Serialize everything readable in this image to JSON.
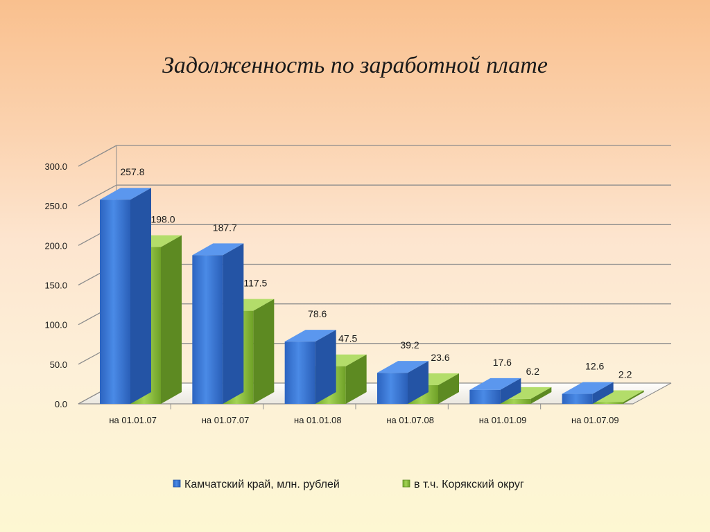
{
  "title": "Задолженность по заработной плате",
  "chart_data": {
    "type": "bar",
    "title": "Задолженность по заработной плате",
    "categories": [
      "на 01.01.07",
      "на 01.07.07",
      "на 01.01.08",
      "на 01.07.08",
      "на 01.01.09",
      "на 01.07.09"
    ],
    "series": [
      {
        "name": "Камчатский край, млн. рублей",
        "values": [
          257.8,
          187.7,
          78.6,
          39.2,
          17.6,
          12.6
        ],
        "labels": [
          "257.8",
          "187.7",
          "78.6",
          "39.2",
          "17.6",
          "12.6"
        ],
        "color": "#3a7bd5"
      },
      {
        "name": "в т.ч. Корякский округ",
        "values": [
          198.0,
          117.5,
          47.5,
          23.6,
          6.2,
          2.2
        ],
        "labels": [
          "198.0",
          "117.5",
          "47.5",
          "23.6",
          "6.2",
          "2.2"
        ],
        "color": "#8dc63f"
      }
    ],
    "yticks": [
      "0.0",
      "50.0",
      "100.0",
      "150.0",
      "200.0",
      "250.0",
      "300.0"
    ],
    "ylim": [
      0,
      300
    ],
    "grid": true,
    "legend": "bottom"
  }
}
